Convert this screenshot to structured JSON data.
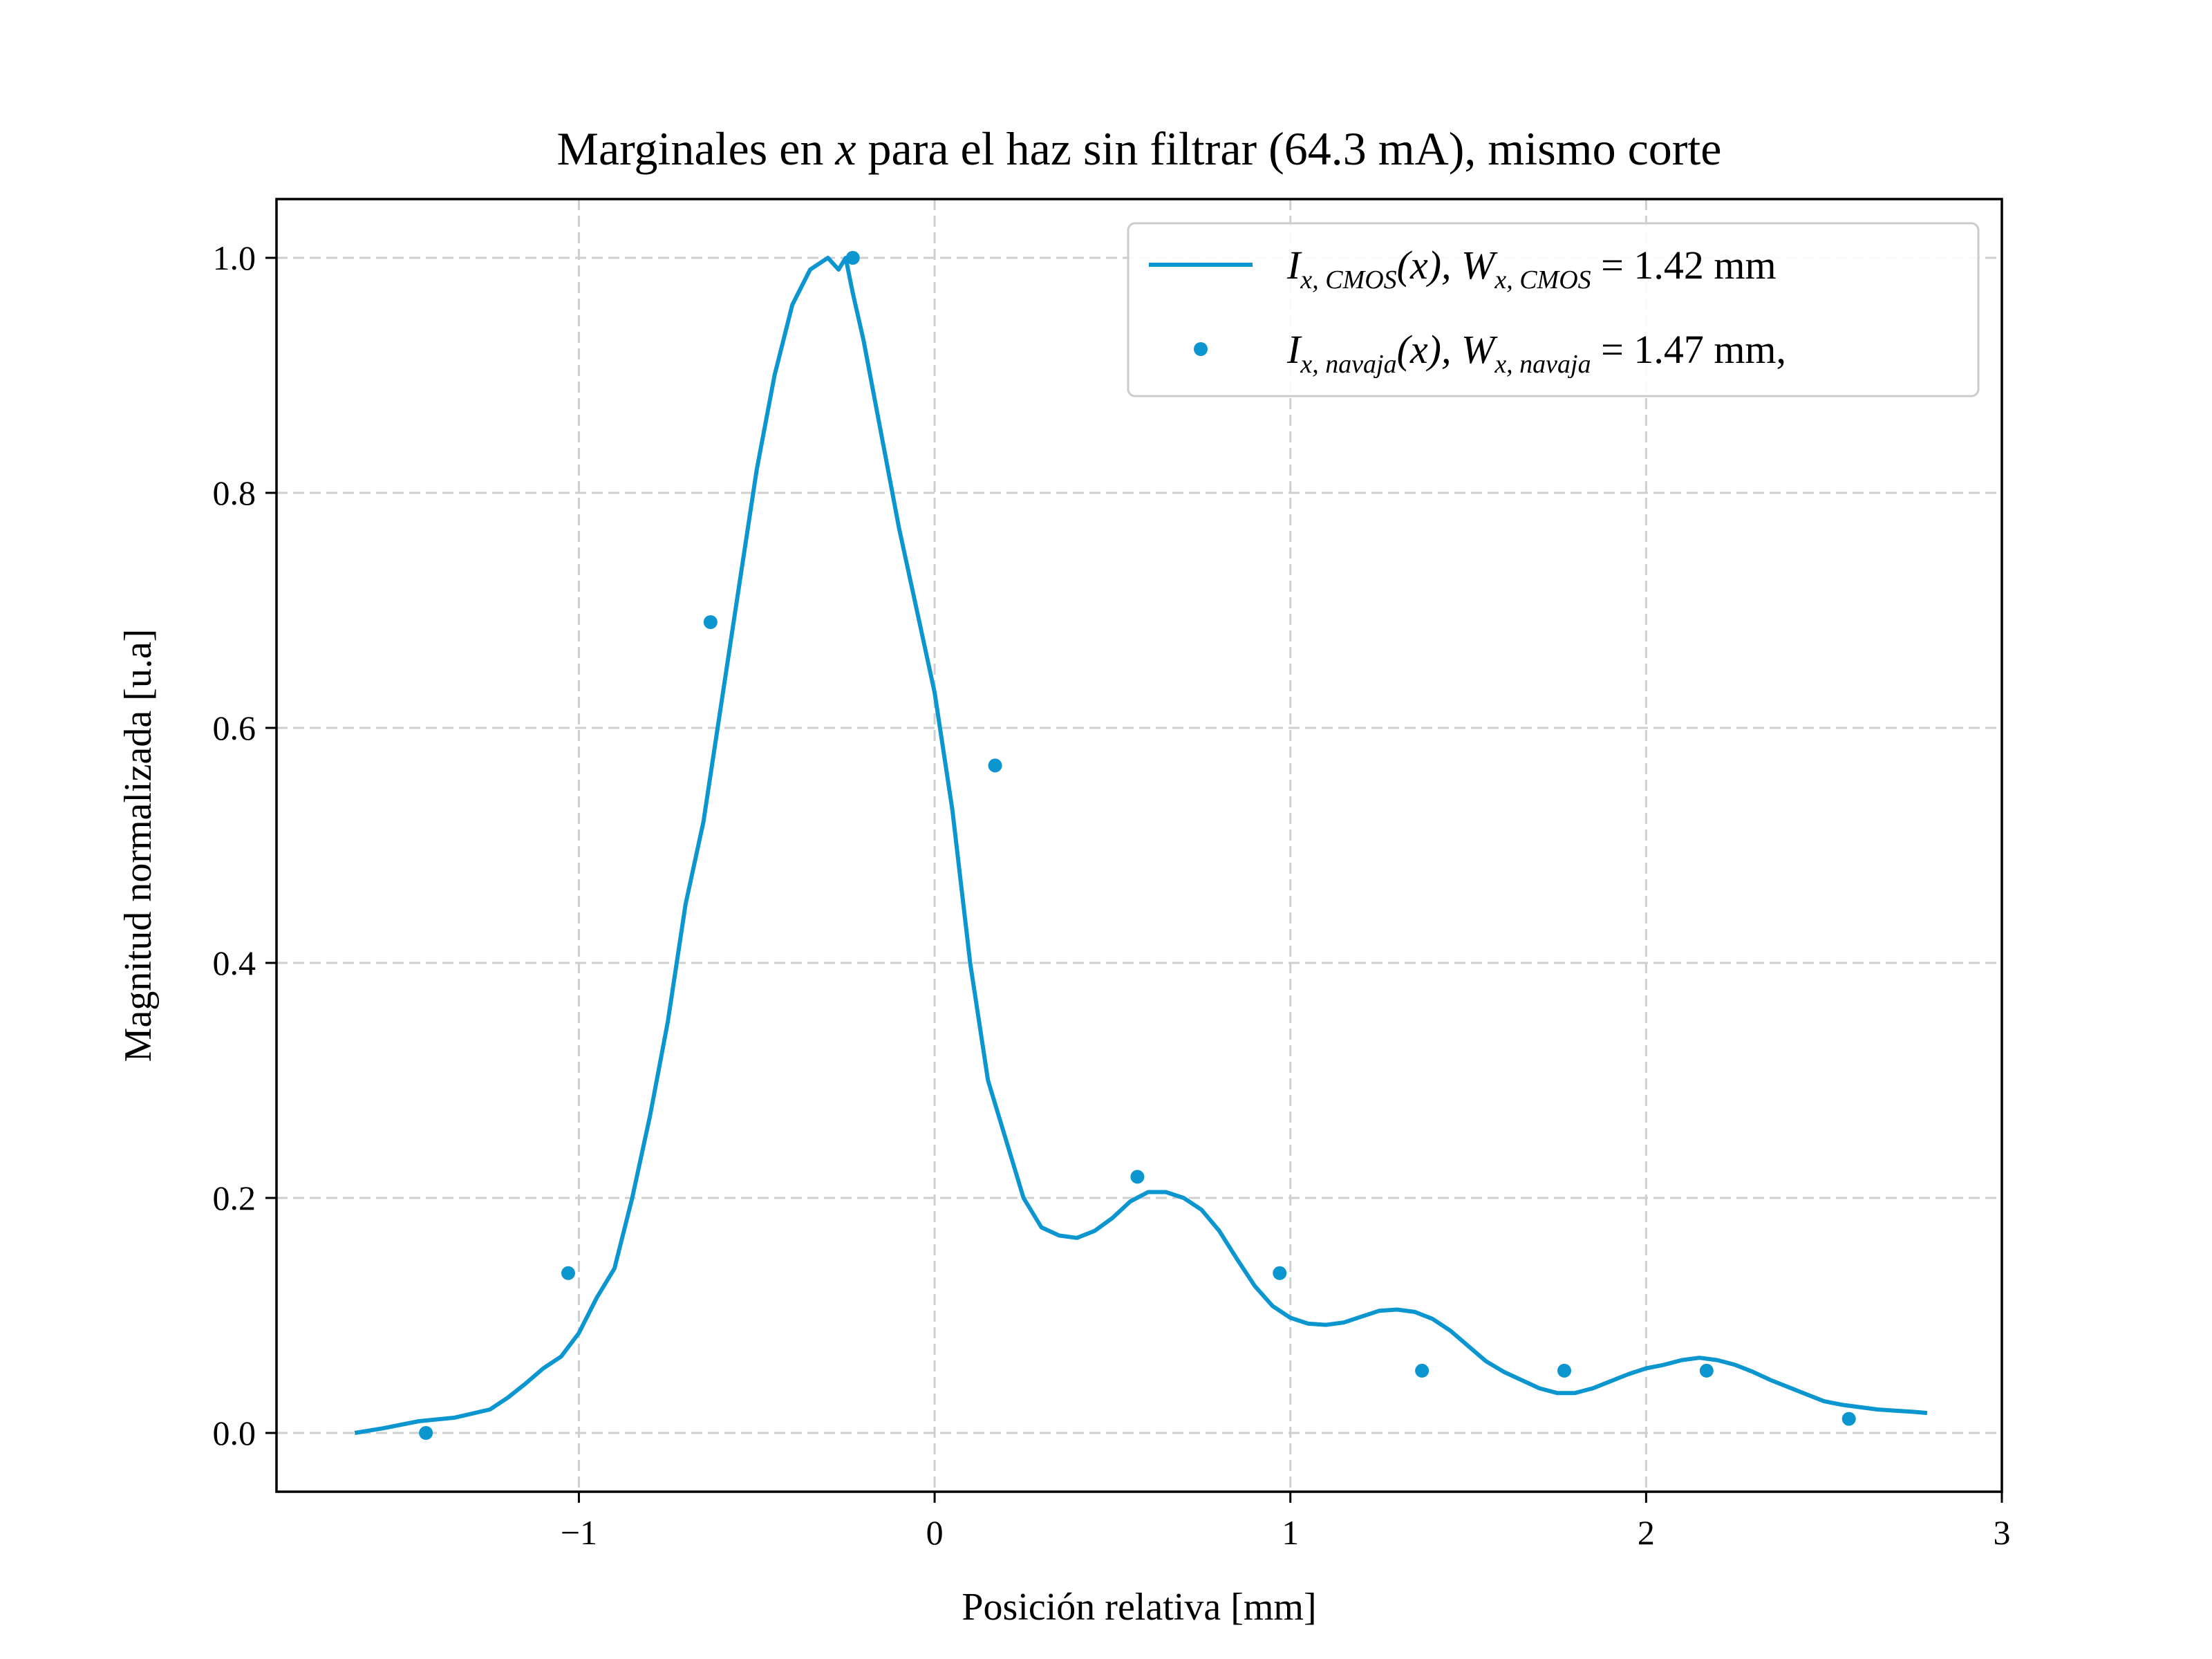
{
  "chart_data": {
    "type": "line",
    "title": "Marginales en x para el haz sin filtrar (64.3 mA), mismo corte",
    "title_parts": [
      "Marginales en ",
      "x",
      " para el haz sin filtrar (64.3 mA), mismo corte"
    ],
    "xlabel": "Posición relativa [mm]",
    "ylabel": "Magnitud normalizada [u.a]",
    "xlim": [
      -1.85,
      3.0
    ],
    "ylim": [
      -0.05,
      1.05
    ],
    "xticks": [
      -1,
      0,
      1,
      2,
      3
    ],
    "xtick_labels": [
      "−1",
      "0",
      "1",
      "2",
      "3"
    ],
    "yticks": [
      0.0,
      0.2,
      0.4,
      0.6,
      0.8,
      1.0
    ],
    "ytick_labels": [
      "0.0",
      "0.2",
      "0.4",
      "0.6",
      "0.8",
      "1.0"
    ],
    "grid": true,
    "legend_position": "top-right",
    "color": "#0c96d0",
    "series": [
      {
        "name": "I_x,CMOS(x), W_x,CMOS = 1.42 mm",
        "legend_parts": [
          "I",
          "x, CMOS",
          "(x), W",
          "x, CMOS",
          " = 1.42 mm"
        ],
        "type": "line",
        "x": [
          -1.63,
          -1.55,
          -1.45,
          -1.35,
          -1.25,
          -1.2,
          -1.15,
          -1.1,
          -1.05,
          -1.0,
          -0.95,
          -0.9,
          -0.85,
          -0.8,
          -0.75,
          -0.7,
          -0.65,
          -0.6,
          -0.55,
          -0.5,
          -0.45,
          -0.4,
          -0.35,
          -0.3,
          -0.27,
          -0.25,
          -0.23,
          -0.2,
          -0.15,
          -0.1,
          -0.05,
          0.0,
          0.05,
          0.1,
          0.15,
          0.2,
          0.25,
          0.3,
          0.35,
          0.4,
          0.45,
          0.5,
          0.55,
          0.6,
          0.65,
          0.7,
          0.75,
          0.8,
          0.85,
          0.9,
          0.95,
          1.0,
          1.05,
          1.1,
          1.15,
          1.2,
          1.25,
          1.3,
          1.35,
          1.4,
          1.45,
          1.5,
          1.55,
          1.6,
          1.65,
          1.7,
          1.75,
          1.8,
          1.85,
          1.9,
          1.95,
          2.0,
          2.05,
          2.1,
          2.15,
          2.2,
          2.25,
          2.3,
          2.35,
          2.4,
          2.45,
          2.5,
          2.55,
          2.6,
          2.65,
          2.7,
          2.75,
          2.79
        ],
        "y": [
          0.0,
          0.004,
          0.01,
          0.013,
          0.02,
          0.03,
          0.042,
          0.055,
          0.065,
          0.085,
          0.115,
          0.14,
          0.2,
          0.27,
          0.35,
          0.45,
          0.52,
          0.62,
          0.72,
          0.82,
          0.9,
          0.96,
          0.99,
          1.0,
          0.99,
          1.0,
          0.97,
          0.93,
          0.85,
          0.77,
          0.7,
          0.63,
          0.53,
          0.4,
          0.3,
          0.25,
          0.2,
          0.175,
          0.168,
          0.166,
          0.172,
          0.183,
          0.197,
          0.205,
          0.205,
          0.2,
          0.19,
          0.172,
          0.148,
          0.125,
          0.108,
          0.098,
          0.093,
          0.092,
          0.094,
          0.099,
          0.104,
          0.105,
          0.103,
          0.097,
          0.087,
          0.074,
          0.061,
          0.052,
          0.045,
          0.038,
          0.034,
          0.034,
          0.038,
          0.044,
          0.05,
          0.055,
          0.058,
          0.062,
          0.064,
          0.062,
          0.058,
          0.052,
          0.045,
          0.039,
          0.033,
          0.027,
          0.024,
          0.022,
          0.02,
          0.019,
          0.018,
          0.017
        ]
      },
      {
        "name": "I_x,navaja(x), W_x,navaja = 1.47 mm,",
        "legend_parts": [
          "I",
          "x, navaja",
          "(x), W",
          "x, navaja",
          " = 1.47 mm,"
        ],
        "type": "scatter",
        "x": [
          -1.43,
          -1.03,
          -0.63,
          -0.23,
          0.17,
          0.57,
          0.97,
          1.37,
          1.77,
          2.17,
          2.57
        ],
        "y": [
          0.0,
          0.136,
          0.69,
          1.0,
          0.568,
          0.218,
          0.136,
          0.053,
          0.053,
          0.053,
          0.012
        ]
      }
    ]
  }
}
